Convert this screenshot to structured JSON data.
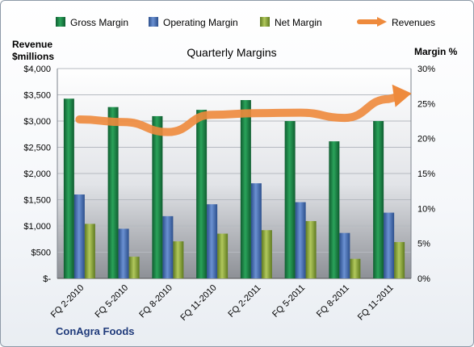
{
  "chart_data": {
    "type": "bar",
    "title": "Quarterly Margins",
    "company": "ConAgra Foods",
    "left_axis_label": [
      "Revenue",
      "$millions"
    ],
    "right_axis_label": "Margin %",
    "left_ticks": [
      "$-",
      "$500",
      "$1,000",
      "$1,500",
      "$2,000",
      "$2,500",
      "$3,000",
      "$3,500",
      "$4,000"
    ],
    "right_ticks": [
      "0%",
      "5%",
      "10%",
      "15%",
      "20%",
      "25%",
      "30%"
    ],
    "left_range": [
      0,
      4000
    ],
    "right_range": [
      0,
      30
    ],
    "categories": [
      "FQ 2-2010",
      "FQ 5-2010",
      "FQ 8-2010",
      "FQ 11-2010",
      "FQ 2-2011",
      "FQ 5-2011",
      "FQ 8-2011",
      "FQ 11-2011"
    ],
    "series": [
      {
        "name": "Gross Margin",
        "axis": "right",
        "color": "#1f8a4a",
        "values": [
          25.7,
          24.5,
          23.2,
          24.1,
          25.5,
          22.5,
          19.6,
          22.5
        ]
      },
      {
        "name": "Operating Margin",
        "axis": "right",
        "color": "#4a72b8",
        "values": [
          12.0,
          7.1,
          8.9,
          10.6,
          13.6,
          10.9,
          6.5,
          9.4
        ]
      },
      {
        "name": "Net Margin",
        "axis": "right",
        "color": "#8faa3a",
        "values": [
          7.8,
          3.1,
          5.3,
          6.4,
          6.9,
          8.2,
          2.8,
          5.2
        ]
      },
      {
        "name": "Revenues",
        "axis": "left",
        "color": "#ee8a3c",
        "type": "line",
        "values": [
          3030,
          2980,
          2790,
          3120,
          3150,
          3160,
          3060,
          3420
        ]
      }
    ],
    "grid": true,
    "legend_position": "top"
  }
}
